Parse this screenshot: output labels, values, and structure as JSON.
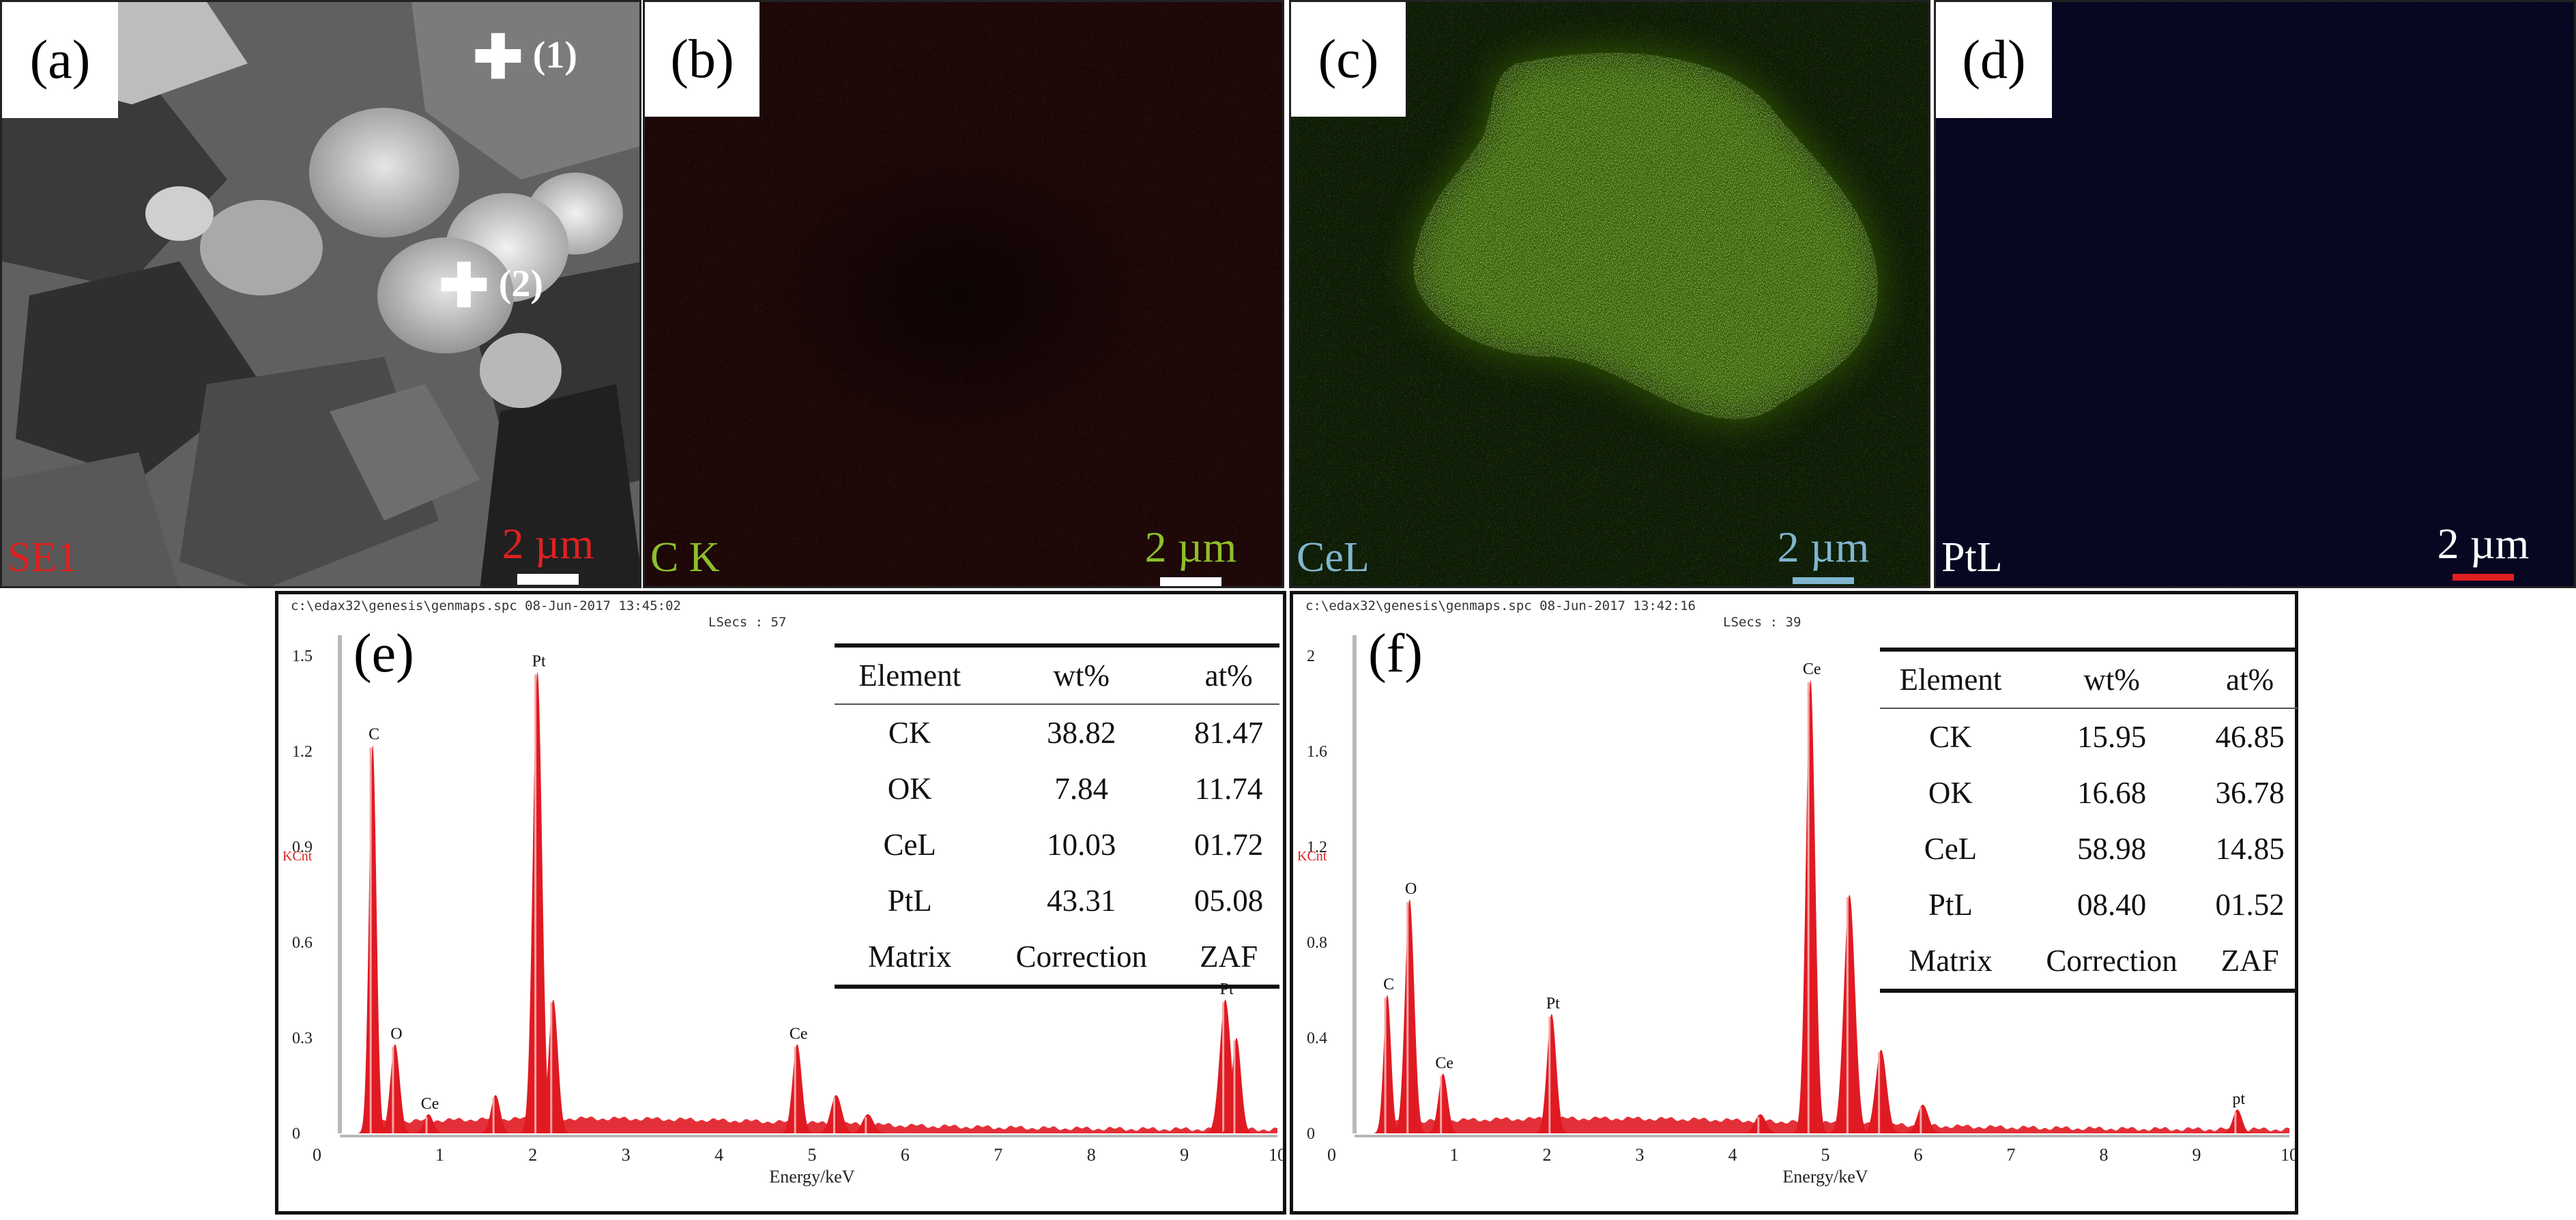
{
  "panels": {
    "a": {
      "label": "(a)",
      "mode_label": "SE1",
      "scale_text": "2 µm",
      "markers": [
        {
          "id": "(1)"
        },
        {
          "id": "(2)"
        }
      ]
    },
    "b": {
      "label": "(b)",
      "element_label": "C K",
      "scale_text": "2 µm",
      "color": "#c0282a"
    },
    "c": {
      "label": "(c)",
      "element_label": "CeL",
      "scale_text": "2 µm",
      "color": "#7ecf2a"
    },
    "d": {
      "label": "(d)",
      "element_label": "PtL",
      "scale_text": "2 µm",
      "color": "#1a1e7a"
    }
  },
  "chart_data": [
    {
      "id": "e",
      "type": "bar",
      "panel_label": "(e)",
      "header": "c:\\edax32\\genesis\\genmaps.spc   08-Jun-2017 13:45:02",
      "header2": "LSecs : 57",
      "ylabel": "KCnt",
      "xlabel": "Energy/keV",
      "xlim": [
        0,
        10
      ],
      "ylim": [
        0,
        1.5
      ],
      "xticks": [
        1,
        2,
        3,
        4,
        5,
        6,
        7,
        8,
        9,
        10
      ],
      "yticks": [
        0,
        0.3,
        0.6,
        0.9,
        1.2,
        1.5
      ],
      "series_color": "#e01a22",
      "peaks": [
        {
          "x": 0.28,
          "y": 1.22,
          "w": 0.04,
          "label": "C"
        },
        {
          "x": 0.52,
          "y": 0.28,
          "w": 0.05,
          "label": "O"
        },
        {
          "x": 0.88,
          "y": 0.06,
          "w": 0.05,
          "label": "Ce"
        },
        {
          "x": 1.6,
          "y": 0.12,
          "w": 0.05
        },
        {
          "x": 2.05,
          "y": 1.45,
          "w": 0.05,
          "label": "Pt"
        },
        {
          "x": 2.22,
          "y": 0.42,
          "w": 0.05
        },
        {
          "x": 4.84,
          "y": 0.28,
          "w": 0.05,
          "label": "Ce"
        },
        {
          "x": 5.26,
          "y": 0.12,
          "w": 0.06
        },
        {
          "x": 5.6,
          "y": 0.06,
          "w": 0.06
        },
        {
          "x": 9.44,
          "y": 0.42,
          "w": 0.06,
          "label": "Pt"
        },
        {
          "x": 9.56,
          "y": 0.3,
          "w": 0.05
        }
      ],
      "table": {
        "headers": [
          "Element",
          "wt%",
          "at%"
        ],
        "rows": [
          [
            "CK",
            "38.82",
            "81.47"
          ],
          [
            "OK",
            "7.84",
            "11.74"
          ],
          [
            "CeL",
            "10.03",
            "01.72"
          ],
          [
            "PtL",
            "43.31",
            "05.08"
          ],
          [
            "Matrix",
            "Correction",
            "ZAF"
          ]
        ]
      }
    },
    {
      "id": "f",
      "type": "bar",
      "panel_label": "(f)",
      "header": "c:\\edax32\\genesis\\genmaps.spc   08-Jun-2017 13:42:16",
      "header2": "LSecs : 39",
      "ylabel": "KCnt",
      "xlabel": "Energy/keV",
      "xlim": [
        0,
        10
      ],
      "ylim": [
        0,
        2.0
      ],
      "xticks": [
        1,
        2,
        3,
        4,
        5,
        6,
        7,
        8,
        9,
        10
      ],
      "yticks": [
        0,
        0.4,
        0.8,
        1.2,
        1.6,
        2.0
      ],
      "series_color": "#e01a22",
      "peaks": [
        {
          "x": 0.28,
          "y": 0.58,
          "w": 0.04,
          "label": "C"
        },
        {
          "x": 0.52,
          "y": 0.98,
          "w": 0.05,
          "label": "O"
        },
        {
          "x": 0.88,
          "y": 0.25,
          "w": 0.05,
          "label": "Ce"
        },
        {
          "x": 2.05,
          "y": 0.5,
          "w": 0.05,
          "label": "Pt"
        },
        {
          "x": 4.84,
          "y": 1.9,
          "w": 0.05,
          "label": "Ce"
        },
        {
          "x": 5.26,
          "y": 1.0,
          "w": 0.06
        },
        {
          "x": 5.6,
          "y": 0.35,
          "w": 0.06
        },
        {
          "x": 6.05,
          "y": 0.12,
          "w": 0.06
        },
        {
          "x": 4.3,
          "y": 0.08,
          "w": 0.06
        },
        {
          "x": 9.44,
          "y": 0.1,
          "w": 0.05,
          "label": "pt"
        }
      ],
      "table": {
        "headers": [
          "Element",
          "wt%",
          "at%"
        ],
        "rows": [
          [
            "CK",
            "15.95",
            "46.85"
          ],
          [
            "OK",
            "16.68",
            "36.78"
          ],
          [
            "CeL",
            "58.98",
            "14.85"
          ],
          [
            "PtL",
            "08.40",
            "01.52"
          ],
          [
            "Matrix",
            "Correction",
            "ZAF"
          ]
        ]
      }
    }
  ]
}
